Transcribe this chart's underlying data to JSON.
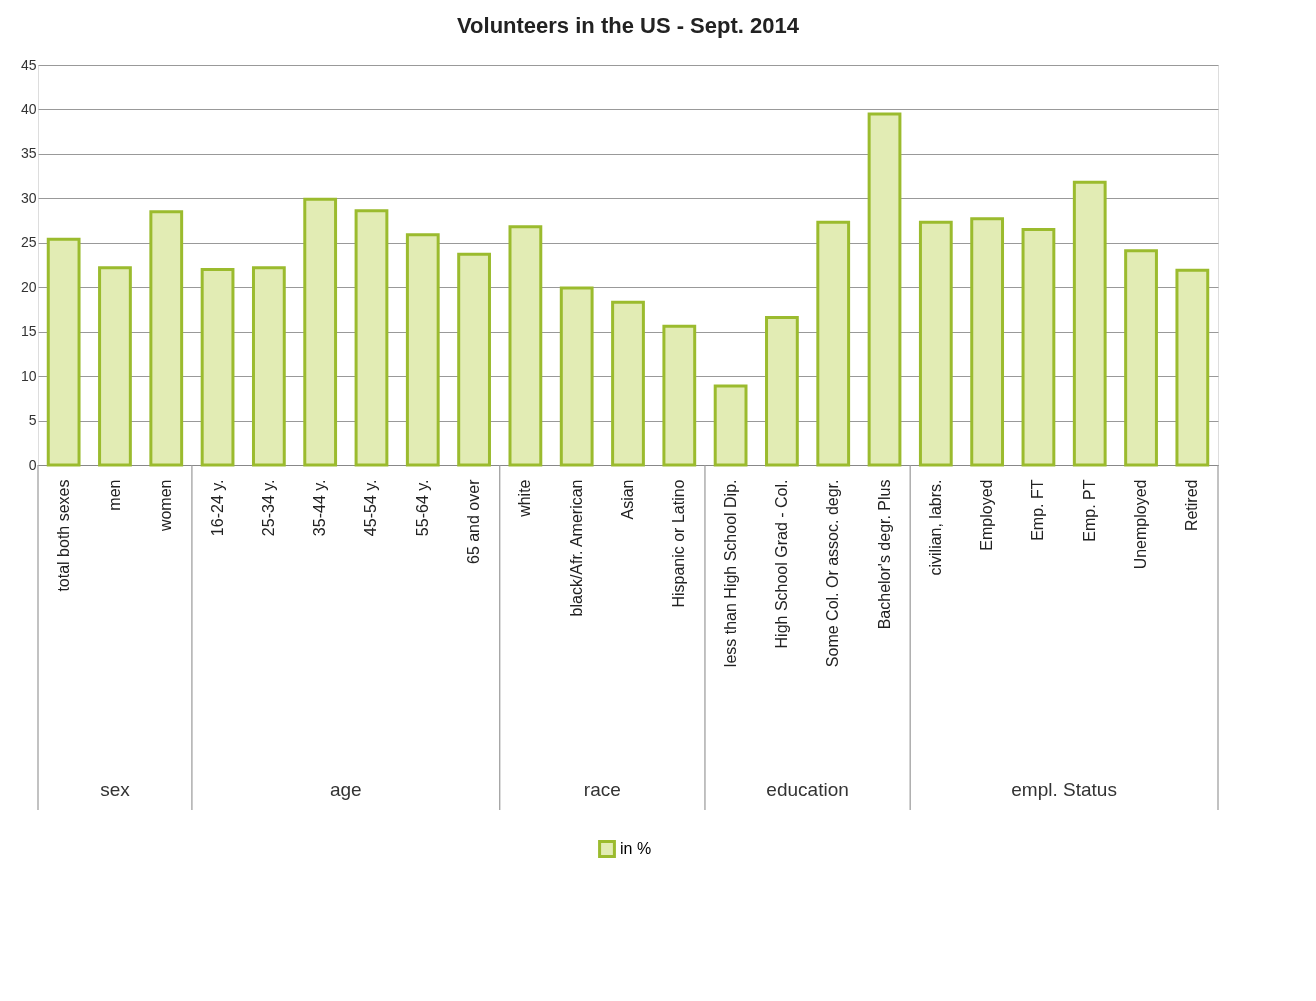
{
  "chart_data": {
    "type": "bar",
    "title": "Volunteers in the US - Sept. 2014",
    "categories": [
      "total both sexes",
      "men",
      "women",
      "16-24 y.",
      "25-34 y.",
      "35-44 y.",
      "45-54 y.",
      "55-64 y.",
      "65 and over",
      "white",
      "black/Afr. American",
      "Asian",
      "Hispanic or Latino",
      "less than High School Dip.",
      "High School Grad - Col.",
      "Some Col. Or assoc. degr.",
      "Bachelor's degr. Plus",
      "civilian, labrs.",
      "Employed",
      "Emp. FT",
      "Emp. PT",
      "Unemployed",
      "Retired"
    ],
    "series": [
      {
        "name": "in %",
        "color": "#e2ecb4",
        "values": [
          25.4,
          22.2,
          28.5,
          22.0,
          22.2,
          29.9,
          28.6,
          25.9,
          23.7,
          26.8,
          19.9,
          18.3,
          15.6,
          8.9,
          16.6,
          27.3,
          39.5,
          27.3,
          27.7,
          26.5,
          31.8,
          24.1,
          21.9
        ]
      }
    ],
    "annotations": [
      "sex",
      "age",
      "race",
      "education",
      "empl. Status"
    ],
    "ylim": [
      0,
      45
    ],
    "yticks": [
      0,
      5,
      10,
      15,
      20,
      25,
      30,
      35,
      40,
      45
    ],
    "grid": "y",
    "legend": "bottom"
  }
}
